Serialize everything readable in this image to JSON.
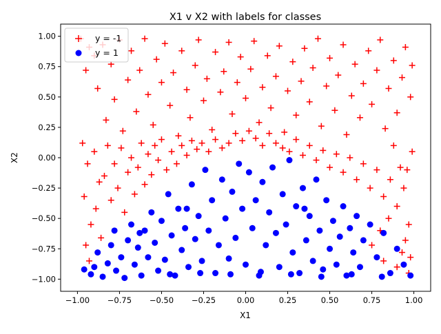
{
  "chart_data": {
    "type": "scatter",
    "title": "X1 v X2 with labels for classes",
    "xlabel": "X1",
    "ylabel": "X2",
    "xlim": [
      -1.1,
      1.1
    ],
    "ylim": [
      -1.1,
      1.1
    ],
    "xticks": [
      -1.0,
      -0.75,
      -0.5,
      -0.25,
      0.0,
      0.25,
      0.5,
      0.75,
      1.0
    ],
    "yticks": [
      -1.0,
      -0.75,
      -0.5,
      -0.25,
      0.0,
      0.25,
      0.5,
      0.75,
      1.0
    ],
    "xtick_labels": [
      "−1.00",
      "−0.75",
      "−0.50",
      "−0.25",
      "0.00",
      "0.25",
      "0.50",
      "0.75",
      "1.00"
    ],
    "ytick_labels": [
      "−1.00",
      "−0.75",
      "−0.50",
      "−0.25",
      "0.00",
      "0.25",
      "0.50",
      "0.75",
      "1.00"
    ],
    "grid": false,
    "legend_position": "top-left",
    "series": [
      {
        "name": "y = -1",
        "marker": "plus",
        "color": "#ff0000",
        "points": [
          [
            -0.98,
            0.98
          ],
          [
            -0.95,
            0.72
          ],
          [
            -0.93,
            0.91
          ],
          [
            -0.9,
            0.84
          ],
          [
            -0.88,
            0.57
          ],
          [
            -0.85,
            0.93
          ],
          [
            -0.83,
            0.31
          ],
          [
            -0.8,
            0.77
          ],
          [
            -0.78,
            0.48
          ],
          [
            -0.75,
            0.97
          ],
          [
            -0.73,
            0.22
          ],
          [
            -0.7,
            0.64
          ],
          [
            -0.68,
            0.88
          ],
          [
            -0.65,
            0.38
          ],
          [
            -0.63,
            0.72
          ],
          [
            -0.6,
            0.98
          ],
          [
            -0.58,
            0.52
          ],
          [
            -0.55,
            0.27
          ],
          [
            -0.53,
            0.81
          ],
          [
            -0.5,
            0.62
          ],
          [
            -0.48,
            0.94
          ],
          [
            -0.45,
            0.43
          ],
          [
            -0.43,
            0.7
          ],
          [
            -0.4,
            0.18
          ],
          [
            -0.38,
            0.88
          ],
          [
            -0.35,
            0.56
          ],
          [
            -0.33,
            0.33
          ],
          [
            -0.3,
            0.76
          ],
          [
            -0.28,
            0.97
          ],
          [
            -0.25,
            0.47
          ],
          [
            -0.23,
            0.65
          ],
          [
            -0.2,
            0.23
          ],
          [
            -0.18,
            0.87
          ],
          [
            -0.15,
            0.54
          ],
          [
            -0.13,
            0.71
          ],
          [
            -0.1,
            0.95
          ],
          [
            -0.08,
            0.36
          ],
          [
            -0.05,
            0.62
          ],
          [
            -0.03,
            0.83
          ],
          [
            0.0,
            0.49
          ],
          [
            0.03,
            0.73
          ],
          [
            0.05,
            0.96
          ],
          [
            0.08,
            0.29
          ],
          [
            0.1,
            0.58
          ],
          [
            0.13,
            0.84
          ],
          [
            0.15,
            0.41
          ],
          [
            0.18,
            0.67
          ],
          [
            0.2,
            0.92
          ],
          [
            0.23,
            0.21
          ],
          [
            0.25,
            0.55
          ],
          [
            0.28,
            0.79
          ],
          [
            0.3,
            0.35
          ],
          [
            0.33,
            0.63
          ],
          [
            0.35,
            0.9
          ],
          [
            0.38,
            0.46
          ],
          [
            0.4,
            0.74
          ],
          [
            0.43,
            0.98
          ],
          [
            0.45,
            0.26
          ],
          [
            0.48,
            0.59
          ],
          [
            0.5,
            0.82
          ],
          [
            0.53,
            0.39
          ],
          [
            0.55,
            0.68
          ],
          [
            0.58,
            0.93
          ],
          [
            0.6,
            0.19
          ],
          [
            0.63,
            0.51
          ],
          [
            0.65,
            0.77
          ],
          [
            0.68,
            0.33
          ],
          [
            0.7,
            0.61
          ],
          [
            0.73,
            0.88
          ],
          [
            0.75,
            0.44
          ],
          [
            0.78,
            0.72
          ],
          [
            0.8,
            0.97
          ],
          [
            0.83,
            0.24
          ],
          [
            0.85,
            0.57
          ],
          [
            0.88,
            0.8
          ],
          [
            0.9,
            0.37
          ],
          [
            0.93,
            0.66
          ],
          [
            0.95,
            0.91
          ],
          [
            0.98,
            0.5
          ],
          [
            0.99,
            0.76
          ],
          [
            -0.97,
            0.12
          ],
          [
            -0.94,
            -0.05
          ],
          [
            -0.96,
            -0.32
          ],
          [
            -0.92,
            -0.55
          ],
          [
            -0.95,
            -0.72
          ],
          [
            -0.93,
            -0.85
          ],
          [
            -0.9,
            0.05
          ],
          [
            -0.87,
            -0.2
          ],
          [
            -0.89,
            -0.42
          ],
          [
            -0.86,
            -0.66
          ],
          [
            -0.84,
            -0.15
          ],
          [
            -0.82,
            0.1
          ],
          [
            -0.8,
            -0.35
          ],
          [
            -0.78,
            -0.05
          ],
          [
            -0.76,
            -0.25
          ],
          [
            -0.74,
            0.08
          ],
          [
            -0.72,
            -0.45
          ],
          [
            -0.7,
            -0.12
          ],
          [
            -0.68,
            0.0
          ],
          [
            -0.66,
            -0.3
          ],
          [
            -0.64,
            -0.08
          ],
          [
            -0.62,
            0.12
          ],
          [
            -0.6,
            -0.22
          ],
          [
            -0.58,
            0.03
          ],
          [
            -0.56,
            -0.14
          ],
          [
            -0.54,
            0.1
          ],
          [
            -0.52,
            -0.02
          ],
          [
            -0.5,
            0.15
          ],
          [
            -0.47,
            -0.1
          ],
          [
            -0.44,
            0.05
          ],
          [
            -0.41,
            -0.05
          ],
          [
            -0.38,
            0.1
          ],
          [
            -0.35,
            0.02
          ],
          [
            -0.32,
            0.14
          ],
          [
            -0.29,
            0.07
          ],
          [
            -0.26,
            0.12
          ],
          [
            -0.22,
            0.05
          ],
          [
            -0.18,
            0.15
          ],
          [
            -0.14,
            0.08
          ],
          [
            -0.1,
            0.12
          ],
          [
            -0.06,
            0.2
          ],
          [
            -0.02,
            0.14
          ],
          [
            0.02,
            0.22
          ],
          [
            0.06,
            0.16
          ],
          [
            0.1,
            0.1
          ],
          [
            0.14,
            0.2
          ],
          [
            0.18,
            0.12
          ],
          [
            0.22,
            0.08
          ],
          [
            0.26,
            0.05
          ],
          [
            0.3,
            0.15
          ],
          [
            0.34,
            0.02
          ],
          [
            0.38,
            0.1
          ],
          [
            0.42,
            -0.02
          ],
          [
            0.46,
            0.06
          ],
          [
            0.5,
            -0.08
          ],
          [
            0.54,
            0.03
          ],
          [
            0.58,
            -0.12
          ],
          [
            0.62,
            0.0
          ],
          [
            0.66,
            -0.18
          ],
          [
            0.7,
            -0.05
          ],
          [
            0.74,
            -0.25
          ],
          [
            0.78,
            -0.1
          ],
          [
            0.82,
            -0.32
          ],
          [
            0.86,
            -0.18
          ],
          [
            0.9,
            -0.4
          ],
          [
            0.94,
            -0.25
          ],
          [
            0.97,
            -0.55
          ],
          [
            0.95,
            -0.68
          ],
          [
            0.98,
            -0.82
          ],
          [
            0.93,
            -0.78
          ],
          [
            0.96,
            -0.1
          ],
          [
            0.99,
            0.05
          ],
          [
            0.92,
            -0.08
          ],
          [
            0.88,
            0.1
          ],
          [
            0.85,
            -0.5
          ],
          [
            0.8,
            -0.6
          ],
          [
            0.75,
            -0.72
          ],
          [
            0.82,
            -0.85
          ],
          [
            0.9,
            -0.9
          ],
          [
            0.97,
            -0.95
          ]
        ]
      },
      {
        "name": "y = 1",
        "marker": "circle",
        "color": "#0000ff",
        "points": [
          [
            -0.96,
            -0.92
          ],
          [
            -0.9,
            -0.9
          ],
          [
            -0.88,
            -0.78
          ],
          [
            -0.85,
            -0.98
          ],
          [
            -0.82,
            -0.87
          ],
          [
            -0.8,
            -0.72
          ],
          [
            -0.77,
            -0.93
          ],
          [
            -0.74,
            -0.82
          ],
          [
            -0.72,
            -0.99
          ],
          [
            -0.7,
            -0.68
          ],
          [
            -0.68,
            -0.55
          ],
          [
            -0.66,
            -0.88
          ],
          [
            -0.64,
            -0.74
          ],
          [
            -0.62,
            -0.97
          ],
          [
            -0.6,
            -0.6
          ],
          [
            -0.58,
            -0.82
          ],
          [
            -0.56,
            -0.45
          ],
          [
            -0.54,
            -0.7
          ],
          [
            -0.52,
            -0.93
          ],
          [
            -0.5,
            -0.52
          ],
          [
            -0.48,
            -0.84
          ],
          [
            -0.46,
            -0.3
          ],
          [
            -0.44,
            -0.64
          ],
          [
            -0.42,
            -0.97
          ],
          [
            -0.4,
            -0.42
          ],
          [
            -0.38,
            -0.76
          ],
          [
            -0.36,
            -0.58
          ],
          [
            -0.34,
            -0.9
          ],
          [
            -0.32,
            -0.22
          ],
          [
            -0.3,
            -0.67
          ],
          [
            -0.28,
            -0.48
          ],
          [
            -0.26,
            -0.85
          ],
          [
            -0.24,
            -0.1
          ],
          [
            -0.22,
            -0.6
          ],
          [
            -0.2,
            -0.35
          ],
          [
            -0.18,
            -0.95
          ],
          [
            -0.16,
            -0.72
          ],
          [
            -0.14,
            -0.18
          ],
          [
            -0.12,
            -0.5
          ],
          [
            -0.1,
            -0.83
          ],
          [
            -0.08,
            -0.28
          ],
          [
            -0.06,
            -0.66
          ],
          [
            -0.04,
            -0.05
          ],
          [
            -0.02,
            -0.42
          ],
          [
            0.0,
            -0.88
          ],
          [
            0.02,
            -0.12
          ],
          [
            0.04,
            -0.58
          ],
          [
            0.06,
            -0.35
          ],
          [
            0.08,
            -0.97
          ],
          [
            0.1,
            -0.2
          ],
          [
            0.12,
            -0.72
          ],
          [
            0.14,
            -0.45
          ],
          [
            0.16,
            -0.08
          ],
          [
            0.18,
            -0.62
          ],
          [
            0.2,
            -0.9
          ],
          [
            0.22,
            -0.3
          ],
          [
            0.24,
            -0.55
          ],
          [
            0.26,
            -0.02
          ],
          [
            0.28,
            -0.78
          ],
          [
            0.3,
            -0.4
          ],
          [
            0.32,
            -0.95
          ],
          [
            0.34,
            -0.25
          ],
          [
            0.36,
            -0.68
          ],
          [
            0.38,
            -0.48
          ],
          [
            0.4,
            -0.85
          ],
          [
            0.42,
            -0.18
          ],
          [
            0.44,
            -0.6
          ],
          [
            0.46,
            -0.92
          ],
          [
            0.48,
            -0.35
          ],
          [
            0.5,
            -0.75
          ],
          [
            0.52,
            -0.52
          ],
          [
            0.54,
            -0.88
          ],
          [
            0.56,
            -0.65
          ],
          [
            0.58,
            -0.4
          ],
          [
            0.6,
            -0.97
          ],
          [
            0.62,
            -0.58
          ],
          [
            0.64,
            -0.78
          ],
          [
            0.66,
            -0.48
          ],
          [
            0.68,
            -0.9
          ],
          [
            0.7,
            -0.68
          ],
          [
            0.74,
            -0.55
          ],
          [
            0.78,
            -0.82
          ],
          [
            0.82,
            -0.62
          ],
          [
            0.86,
            -0.95
          ],
          [
            0.9,
            -0.75
          ],
          [
            0.94,
            -0.88
          ],
          [
            0.98,
            -0.97
          ],
          [
            -0.92,
            -0.96
          ],
          [
            -0.78,
            -0.6
          ],
          [
            -0.63,
            -0.62
          ],
          [
            -0.45,
            -0.96
          ],
          [
            -0.27,
            -0.95
          ],
          [
            -0.09,
            -0.96
          ],
          [
            0.09,
            -0.94
          ],
          [
            0.27,
            -0.96
          ],
          [
            0.45,
            -0.98
          ],
          [
            0.63,
            -0.96
          ],
          [
            0.81,
            -0.98
          ],
          [
            -0.35,
            -0.42
          ],
          [
            0.35,
            -0.42
          ]
        ]
      }
    ]
  }
}
